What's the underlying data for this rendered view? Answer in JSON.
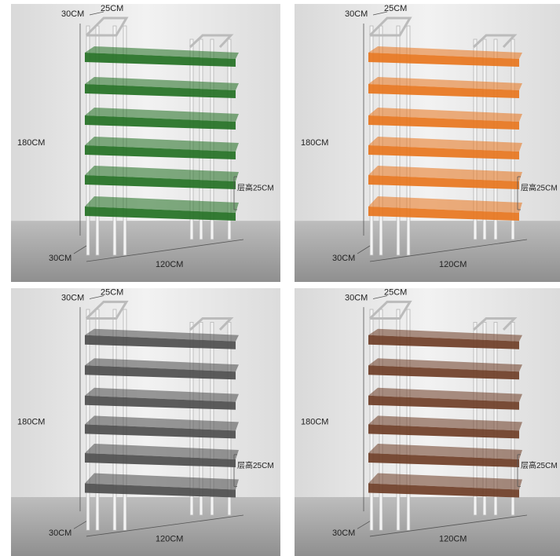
{
  "panels": [
    {
      "top_depth": "30CM",
      "top_width": "25CM",
      "height": "180CM",
      "shelf_gap": "层高25CM",
      "bottom_depth": "30CM",
      "length": "120CM"
    },
    {
      "top_depth": "30CM",
      "top_width": "25CM",
      "height": "180CM",
      "shelf_gap": "层高25CM",
      "bottom_depth": "30CM",
      "length": "120CM"
    },
    {
      "top_depth": "30CM",
      "top_width": "25CM",
      "height": "180CM",
      "shelf_gap": "层高25CM",
      "bottom_depth": "30CM",
      "length": "120CM"
    },
    {
      "top_depth": "30CM",
      "top_width": "25CM",
      "height": "180CM",
      "shelf_gap": "层高25CM",
      "bottom_depth": "30CM",
      "length": "120CM"
    }
  ]
}
